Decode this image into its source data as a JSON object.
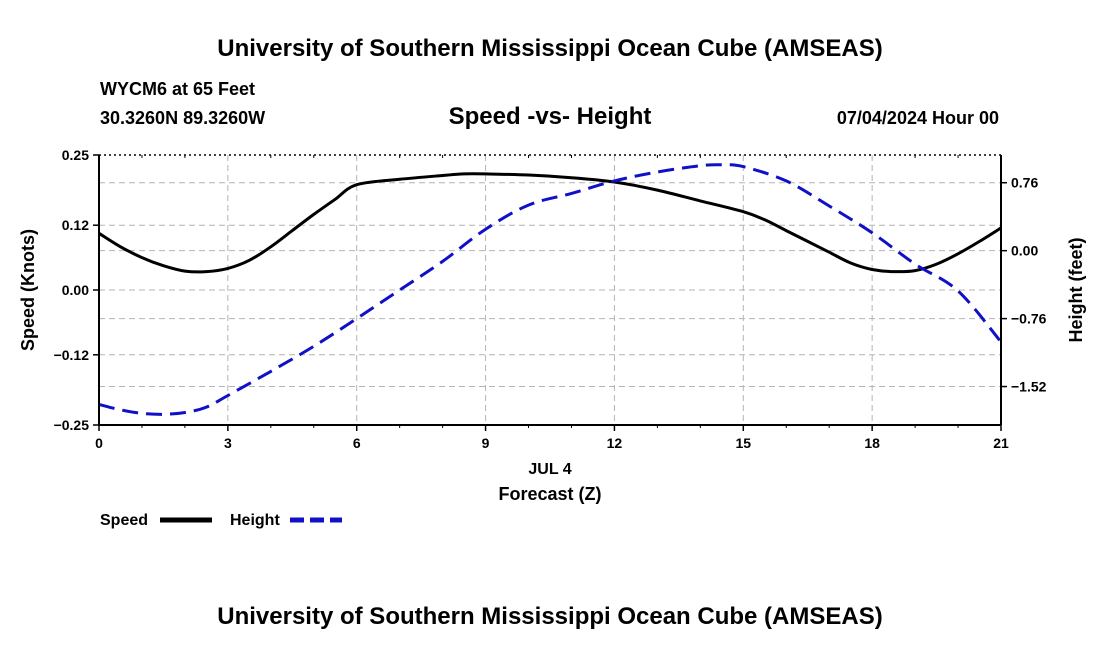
{
  "page": {
    "header_title": "University of Southern Mississippi Ocean Cube (AMSEAS)",
    "footer_title": "University of Southern Mississippi Ocean Cube (AMSEAS)",
    "station": "WYCM6 at 65 Feet",
    "coords": "30.3260N  89.3260W",
    "plot_title": "Speed -vs- Height",
    "datetime": "07/04/2024 Hour 00"
  },
  "chart_data": {
    "type": "line",
    "title": "Speed -vs- Height",
    "xlabel_date": "JUL 4",
    "xlabel": "Forecast (Z)",
    "ylabel_left": "Speed (Knots)",
    "ylabel_right": "Height (feet)",
    "xlim": [
      0,
      21
    ],
    "ylim_left": [
      -0.25,
      0.25
    ],
    "ylim_right": [
      -1.95,
      1.07
    ],
    "x_ticks": [
      0,
      3,
      6,
      9,
      12,
      15,
      18,
      21
    ],
    "x_tick_labels": [
      "0",
      "3",
      "6",
      "9",
      "12",
      "15",
      "18",
      "21"
    ],
    "y_left_ticks": [
      -0.25,
      -0.12,
      0.0,
      0.12,
      0.25
    ],
    "y_left_tick_labels": [
      "−0.25",
      "−0.12",
      "0.00",
      "0.12",
      "0.25"
    ],
    "y_right_ticks": [
      0.76,
      0.0,
      -0.76,
      -1.52
    ],
    "y_right_tick_labels": [
      "0.76",
      "0.00",
      "−0.76",
      "−1.52"
    ],
    "grid": true,
    "legend": [
      {
        "name": "Speed",
        "color": "#000000",
        "dash": "solid"
      },
      {
        "name": "Height",
        "color": "#1010c8",
        "dash": "dashed"
      }
    ],
    "series": [
      {
        "name": "Speed",
        "axis": "left",
        "color": "#000000",
        "x": [
          0,
          0.5,
          1,
          1.5,
          2,
          2.5,
          3,
          3.5,
          4,
          4.5,
          5,
          5.5,
          6,
          7,
          8,
          8.5,
          9,
          10,
          11,
          12,
          13,
          14,
          15,
          15.5,
          16,
          16.5,
          17,
          17.5,
          18,
          18.5,
          19,
          19.5,
          20,
          20.5,
          21
        ],
        "y": [
          0.105,
          0.08,
          0.06,
          0.045,
          0.035,
          0.034,
          0.04,
          0.055,
          0.08,
          0.11,
          0.14,
          0.168,
          0.195,
          0.205,
          0.212,
          0.215,
          0.215,
          0.213,
          0.208,
          0.2,
          0.185,
          0.165,
          0.145,
          0.13,
          0.11,
          0.09,
          0.07,
          0.05,
          0.038,
          0.034,
          0.036,
          0.048,
          0.067,
          0.09,
          0.115
        ]
      },
      {
        "name": "Height",
        "axis": "right",
        "color": "#1010c8",
        "x": [
          0,
          0.5,
          1,
          1.5,
          2,
          2.5,
          3,
          4,
          5,
          6,
          7,
          8,
          9,
          10,
          11,
          12,
          13,
          14,
          14.5,
          15,
          16,
          17,
          18,
          19,
          20,
          21
        ],
        "y": [
          -1.72,
          -1.78,
          -1.82,
          -1.83,
          -1.81,
          -1.75,
          -1.62,
          -1.35,
          -1.07,
          -0.76,
          -0.44,
          -0.12,
          0.24,
          0.51,
          0.64,
          0.78,
          0.88,
          0.95,
          0.96,
          0.94,
          0.78,
          0.5,
          0.2,
          -0.15,
          -0.45,
          -1.02
        ]
      }
    ]
  }
}
